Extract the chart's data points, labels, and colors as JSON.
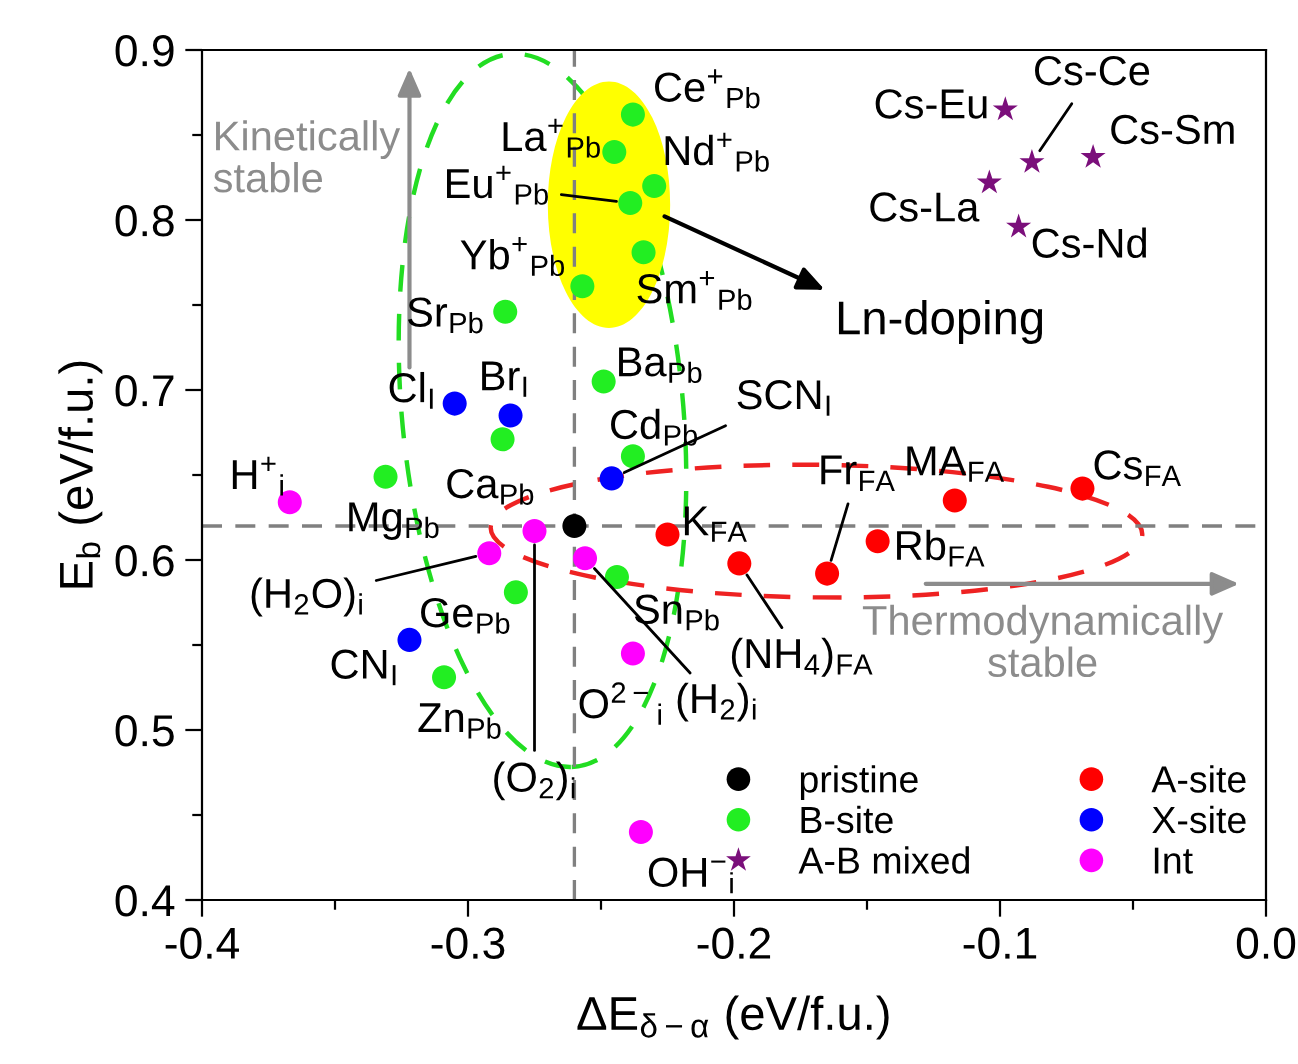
{
  "chart_data": {
    "type": "scatter",
    "xlabel": "ΔE$_{δ−α}$ (eV/f.u.)",
    "ylabel": "E$_{b}$ (eV/f.u.)",
    "xlim": [
      -0.4,
      0.0
    ],
    "ylim": [
      0.4,
      0.9
    ],
    "xticks": [
      -0.4,
      {
        "value": -0.35,
        "label": null
      },
      -0.3,
      {
        "value": -0.25,
        "label": null
      },
      -0.2,
      {
        "value": -0.15,
        "label": null
      },
      -0.1,
      {
        "value": -0.05,
        "label": null
      },
      {
        "value": 0.0,
        "label": "0.0"
      }
    ],
    "yticks": [
      0.4,
      {
        "value": 0.45,
        "label": null
      },
      0.5,
      {
        "value": 0.55,
        "label": null
      },
      0.6,
      {
        "value": 0.65,
        "label": null
      },
      0.7,
      {
        "value": 0.75,
        "label": null
      },
      0.8,
      {
        "value": 0.85,
        "label": null
      },
      0.9
    ],
    "grid": false,
    "legend": "bottom right",
    "ref_lines": [
      {
        "axis": "x",
        "value": -0.26,
        "color": "#808080",
        "line_style": "dashed"
      },
      {
        "axis": "y",
        "value": 0.62,
        "color": "#808080",
        "line_style": "dashed"
      }
    ],
    "series": [
      {
        "name": "pristine",
        "color": "#000000",
        "marker": "circle",
        "x": [
          -0.26
        ],
        "values": [
          0.62
        ]
      },
      {
        "name": "B-site",
        "color": "#22ee22",
        "marker": "circle",
        "x": [
          -0.245,
          -0.238,
          -0.23,
          -0.239,
          -0.234,
          -0.257,
          -0.286,
          -0.249,
          -0.287,
          -0.238,
          -0.331,
          -0.282,
          -0.309,
          -0.244
        ],
        "values": [
          0.84,
          0.862,
          0.82,
          0.81,
          0.781,
          0.761,
          0.746,
          0.705,
          0.671,
          0.661,
          0.649,
          0.581,
          0.531,
          0.59
        ]
      },
      {
        "name": "A-B mixed",
        "color": "#7b0f7b",
        "marker": "star",
        "x": [
          -0.098,
          -0.088,
          -0.065,
          -0.104,
          -0.093
        ],
        "values": [
          0.865,
          0.834,
          0.837,
          0.822,
          0.796
        ]
      },
      {
        "name": "A-site",
        "color": "#ff0000",
        "marker": "circle",
        "x": [
          -0.225,
          -0.198,
          -0.165,
          -0.146,
          -0.117,
          -0.069
        ],
        "values": [
          0.615,
          0.598,
          0.592,
          0.611,
          0.635,
          0.642
        ]
      },
      {
        "name": "X-site",
        "color": "#0000ff",
        "marker": "circle",
        "x": [
          -0.305,
          -0.284,
          -0.246,
          -0.322
        ],
        "values": [
          0.692,
          0.685,
          0.648,
          0.553
        ]
      },
      {
        "name": "Int",
        "color": "#ff00ff",
        "marker": "circle",
        "x": [
          -0.367,
          -0.292,
          -0.275,
          -0.256,
          -0.238,
          -0.235
        ],
        "values": [
          0.634,
          0.604,
          0.617,
          0.601,
          0.545,
          0.44
        ]
      }
    ],
    "annotations": [
      {
        "text": "La$^{+}$$_{Pb}$",
        "x": -0.245,
        "y": 0.84
      },
      {
        "text": "Ce$^{+}$$_{Pb}$",
        "x": -0.238,
        "y": 0.862
      },
      {
        "text": "Nd$^{+}$$_{Pb}$",
        "x": -0.23,
        "y": 0.82
      },
      {
        "text": "Eu$^{+}$$_{Pb}$",
        "x": -0.239,
        "y": 0.81
      },
      {
        "text": "Sm$^{+}$$_{Pb}$",
        "x": -0.234,
        "y": 0.781
      },
      {
        "text": "Yb$^{+}$$_{Pb}$",
        "x": -0.257,
        "y": 0.761
      },
      {
        "text": "Sr$_{Pb}$",
        "x": -0.286,
        "y": 0.746
      },
      {
        "text": "Ba$_{Pb}$",
        "x": -0.249,
        "y": 0.705
      },
      {
        "text": "Cl$_{I}$",
        "x": -0.305,
        "y": 0.692
      },
      {
        "text": "Br$_{I}$",
        "x": -0.284,
        "y": 0.685
      },
      {
        "text": "Ca$_{Pb}$",
        "x": -0.287,
        "y": 0.671
      },
      {
        "text": "Cd$_{Pb}$",
        "x": -0.238,
        "y": 0.661
      },
      {
        "text": "SCN$_{I}$",
        "x": -0.246,
        "y": 0.648
      },
      {
        "text": "Mg$_{Pb}$",
        "x": -0.331,
        "y": 0.649
      },
      {
        "text": "H$^{+}$$_{i}$",
        "x": -0.367,
        "y": 0.634
      },
      {
        "text": "(H$_{2}$O)$_{i}$",
        "x": -0.292,
        "y": 0.604
      },
      {
        "text": "(O$_{2}$)$_{i}$",
        "x": -0.275,
        "y": 0.617
      },
      {
        "text": "(H$_{2}$)$_{i}$",
        "x": -0.256,
        "y": 0.601
      },
      {
        "text": "Ge$_{Pb}$",
        "x": -0.282,
        "y": 0.581
      },
      {
        "text": "CN$_{I}$",
        "x": -0.322,
        "y": 0.553
      },
      {
        "text": "Zn$_{Pb}$",
        "x": -0.309,
        "y": 0.531
      },
      {
        "text": "Sn$_{Pb}$",
        "x": -0.244,
        "y": 0.59
      },
      {
        "text": "O$^{2−}$$_{i}$",
        "x": -0.238,
        "y": 0.545
      },
      {
        "text": "OH$^{−}$$_{i}$",
        "x": -0.235,
        "y": 0.44
      },
      {
        "text": "K$_{FA}$",
        "x": -0.225,
        "y": 0.615
      },
      {
        "text": "(NH$_{4}$)$_{FA}$",
        "x": -0.198,
        "y": 0.598
      },
      {
        "text": "Fr$_{FA}$",
        "x": -0.165,
        "y": 0.592
      },
      {
        "text": "Rb$_{FA}$",
        "x": -0.146,
        "y": 0.611
      },
      {
        "text": "MA$_{FA}$",
        "x": -0.117,
        "y": 0.635
      },
      {
        "text": "Cs$_{FA}$",
        "x": -0.069,
        "y": 0.642
      },
      {
        "text": "Cs-Eu",
        "x": -0.098,
        "y": 0.865
      },
      {
        "text": "Cs-Ce",
        "x": -0.088,
        "y": 0.834
      },
      {
        "text": "Cs-Sm",
        "x": -0.065,
        "y": 0.837
      },
      {
        "text": "Cs-La",
        "x": -0.104,
        "y": 0.822
      },
      {
        "text": "Cs-Nd",
        "x": -0.093,
        "y": 0.796
      },
      "Kinetically\nstable",
      "Thermodynamically\nstable",
      "Ln-doping"
    ]
  }
}
